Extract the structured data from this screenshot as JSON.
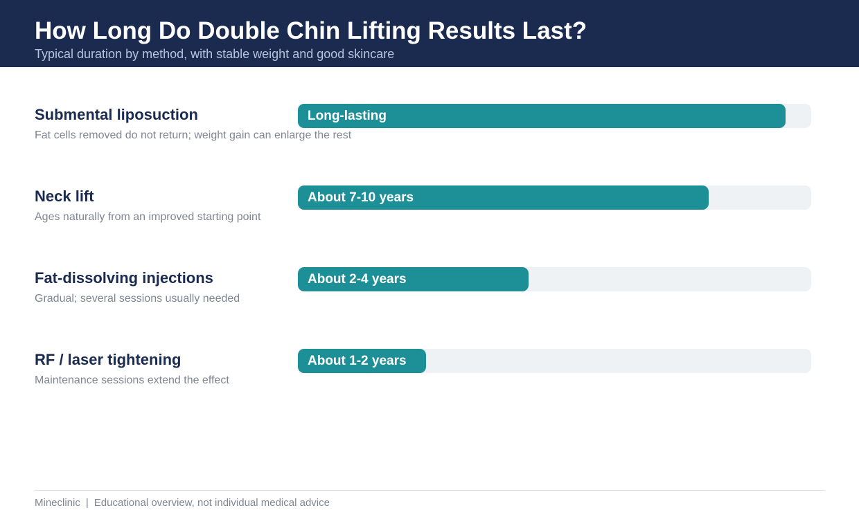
{
  "header": {
    "title": "How Long Do Double Chin Lifting Results Last?",
    "subtitle": "Typical duration by method, with stable weight and good skincare"
  },
  "chart_data": {
    "type": "bar",
    "orientation": "horizontal",
    "categories": [
      "Submental liposuction",
      "Neck lift",
      "Fat-dissolving injections",
      "RF / laser tightening"
    ],
    "notes": [
      "Fat cells removed do not return; weight gain can enlarge the rest",
      "Ages naturally from an improved starting point",
      "Gradual; several sessions usually needed",
      "Maintenance sessions extend the effect"
    ],
    "labels": [
      "Long-lasting",
      "About 7-10 years",
      "About 2-4 years",
      "About 1-2 years"
    ],
    "values": [
      0.95,
      0.8,
      0.45,
      0.25
    ],
    "colors": {
      "fill": "#1d8f97",
      "track": "#eff2f5",
      "header": "#1a2b4f"
    }
  },
  "footer": {
    "brand": "Mineclinic",
    "separator": "|",
    "disclaimer": "Educational overview, not individual medical advice"
  }
}
